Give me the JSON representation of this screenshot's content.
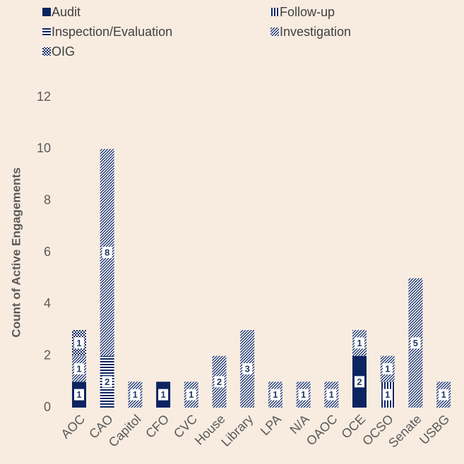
{
  "chart_data": {
    "type": "stacked_bar",
    "y_label": "Count of Active Engagements",
    "categories": [
      "AOC",
      "CAO",
      "Capitol",
      "CFO",
      "CVC",
      "House",
      "Library",
      "LPA",
      "N/A",
      "OAOC",
      "OCE",
      "OCSO",
      "Senate",
      "USBG"
    ],
    "series": [
      {
        "name": "Audit",
        "color": "#0c2461",
        "values": [
          1,
          null,
          null,
          1,
          null,
          null,
          null,
          null,
          null,
          null,
          2,
          null,
          null,
          null
        ]
      },
      {
        "name": "Follow-up",
        "color": "#0c2461",
        "values": [
          null,
          null,
          null,
          null,
          null,
          null,
          null,
          null,
          null,
          null,
          null,
          1,
          null,
          null
        ]
      },
      {
        "name": "Inspection/Evaluation",
        "color": "#0c2461",
        "values": [
          null,
          2,
          null,
          null,
          null,
          null,
          null,
          null,
          null,
          null,
          null,
          null,
          null,
          null
        ]
      },
      {
        "name": "Investigation",
        "color": "#0c2461",
        "values": [
          1,
          8,
          1,
          null,
          1,
          2,
          3,
          1,
          1,
          1,
          1,
          1,
          5,
          1
        ]
      },
      {
        "name": "OIG",
        "color": "#0c2461",
        "values": [
          1,
          null,
          null,
          null,
          null,
          null,
          null,
          null,
          null,
          null,
          null,
          null,
          null,
          null
        ]
      }
    ],
    "ylim": [
      0,
      12
    ],
    "yticks": [
      0,
      2,
      4,
      6,
      8,
      10,
      12
    ],
    "grid": false,
    "legend": "top"
  }
}
